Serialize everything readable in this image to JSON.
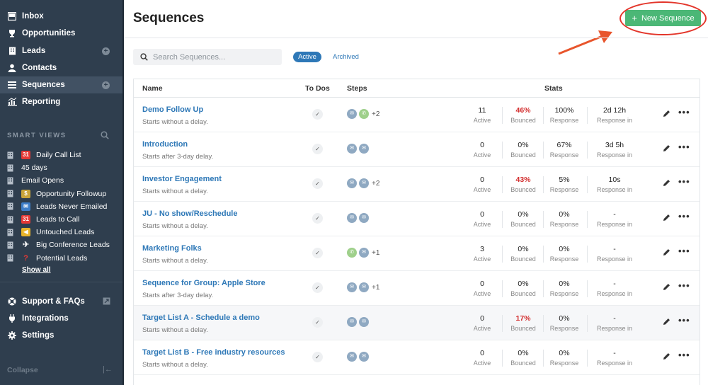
{
  "nav": {
    "items": [
      {
        "label": "Inbox",
        "icon": "inbox-icon"
      },
      {
        "label": "Opportunities",
        "icon": "trophy-icon"
      },
      {
        "label": "Leads",
        "icon": "building-icon"
      },
      {
        "label": "Contacts",
        "icon": "person-icon"
      },
      {
        "label": "Sequences",
        "icon": "list-icon"
      },
      {
        "label": "Reporting",
        "icon": "chart-icon"
      }
    ],
    "smart_views_header": "SMART VIEWS",
    "smart_views": [
      {
        "label": "Daily Call List",
        "emoji": "calendar-icon"
      },
      {
        "label": "45 days",
        "emoji": ""
      },
      {
        "label": "Email Opens",
        "emoji": ""
      },
      {
        "label": "Opportunity Followup",
        "emoji": "money-icon"
      },
      {
        "label": "Leads Never Emailed",
        "emoji": "mailbox-icon"
      },
      {
        "label": "Leads to Call",
        "emoji": "calendar-icon"
      },
      {
        "label": "Untouched Leads",
        "emoji": "megaphone-icon"
      },
      {
        "label": "Big Conference Leads",
        "emoji": "airplane-icon"
      },
      {
        "label": "Potential Leads",
        "emoji": "question-icon"
      }
    ],
    "show_all": "Show all",
    "bottom": [
      {
        "label": "Support & FAQs",
        "icon": "lifebuoy-icon"
      },
      {
        "label": "Integrations",
        "icon": "plug-icon"
      },
      {
        "label": "Settings",
        "icon": "gear-icon"
      }
    ],
    "collapse": "Collapse"
  },
  "header": {
    "title": "Sequences",
    "new_button": "New Sequence"
  },
  "toolbar": {
    "search_placeholder": "Search Sequences...",
    "tab_active": "Active",
    "tab_archived": "Archived"
  },
  "table": {
    "headers": {
      "name": "Name",
      "todos": "To Dos",
      "steps": "Steps",
      "stats": "Stats"
    },
    "rows": [
      {
        "name": "Demo Follow Up",
        "sub": "Starts without a delay.",
        "steps": [
          "email",
          "call"
        ],
        "more": "+2",
        "active": "11",
        "bounced": "46%",
        "bounced_red": true,
        "response": "100%",
        "response_in": "2d 12h"
      },
      {
        "name": "Introduction",
        "sub": "Starts after 3-day delay.",
        "steps": [
          "email",
          "email"
        ],
        "more": "",
        "active": "0",
        "bounced": "0%",
        "bounced_red": false,
        "response": "67%",
        "response_in": "3d 5h"
      },
      {
        "name": "Investor Engagement",
        "sub": "Starts without a delay.",
        "steps": [
          "email",
          "email"
        ],
        "more": "+2",
        "active": "0",
        "bounced": "43%",
        "bounced_red": true,
        "response": "5%",
        "response_in": "10s"
      },
      {
        "name": "JU - No show/Reschedule",
        "sub": "Starts without a delay.",
        "steps": [
          "email",
          "email"
        ],
        "more": "",
        "active": "0",
        "bounced": "0%",
        "bounced_red": false,
        "response": "0%",
        "response_in": "-"
      },
      {
        "name": "Marketing Folks",
        "sub": "Starts without a delay.",
        "steps": [
          "call",
          "email"
        ],
        "more": "+1",
        "active": "3",
        "bounced": "0%",
        "bounced_red": false,
        "response": "0%",
        "response_in": "-"
      },
      {
        "name": "Sequence for Group: Apple Store",
        "sub": "Starts after 3-day delay.",
        "steps": [
          "email",
          "email"
        ],
        "more": "+1",
        "active": "0",
        "bounced": "0%",
        "bounced_red": false,
        "response": "0%",
        "response_in": "-"
      },
      {
        "name": "Target List A - Schedule a demo",
        "sub": "Starts without a delay.",
        "steps": [
          "email",
          "email"
        ],
        "more": "",
        "active": "0",
        "bounced": "17%",
        "bounced_red": true,
        "response": "0%",
        "response_in": "-"
      },
      {
        "name": "Target List B - Free industry resources",
        "sub": "Starts without a delay.",
        "steps": [
          "email",
          "email"
        ],
        "more": "",
        "active": "0",
        "bounced": "0%",
        "bounced_red": false,
        "response": "0%",
        "response_in": "-"
      }
    ],
    "stat_labels": {
      "active": "Active",
      "bounced": "Bounced",
      "response": "Response",
      "response_in": "Response in"
    }
  },
  "colors": {
    "accent": "#2e78b7",
    "success": "#4bb776",
    "sidebar": "#2f3e4e",
    "danger": "#d32f2f"
  }
}
